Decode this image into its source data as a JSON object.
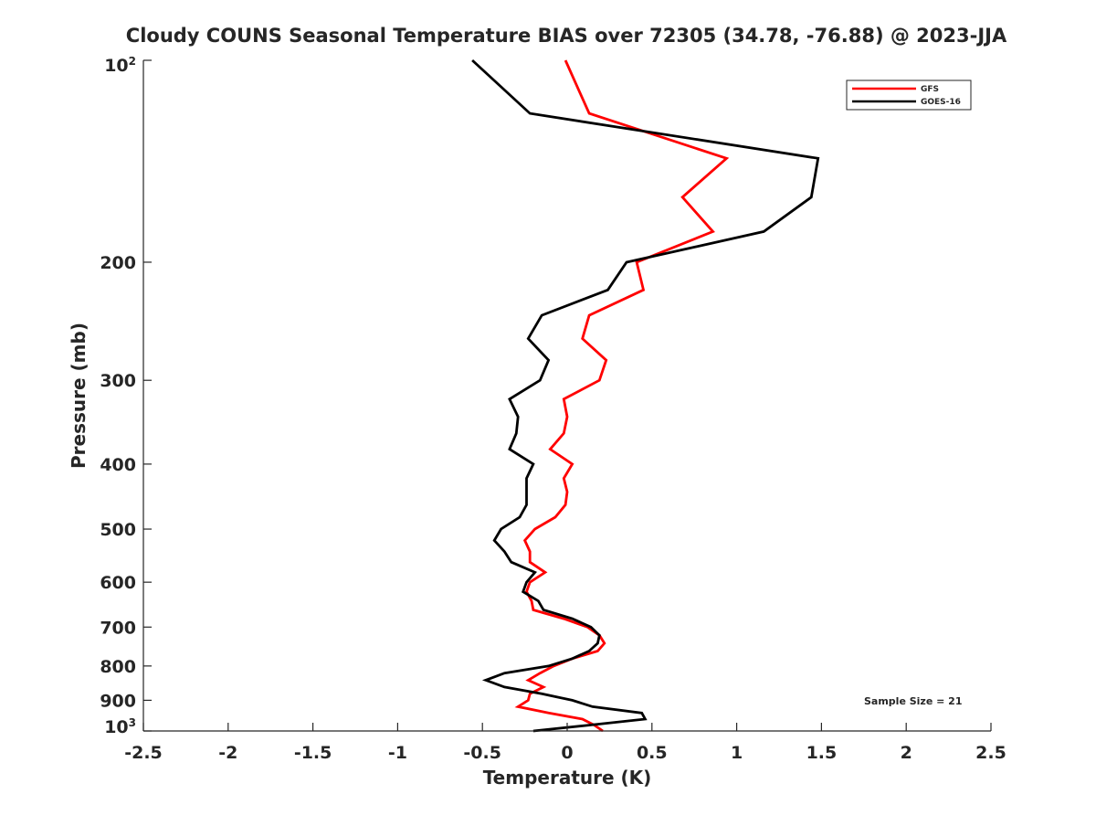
{
  "chart_data": {
    "type": "line",
    "title": "Cloudy COUNS Seasonal Temperature BIAS over 72305 (34.78, -76.88) @ 2023-JJA",
    "xlabel": "Temperature (K)",
    "ylabel": "Pressure (mb)",
    "xlim": [
      -2.5,
      2.5
    ],
    "ylim": [
      100,
      1000
    ],
    "yscale": "log",
    "yreversed": true,
    "grid": false,
    "legend_position": "top-right",
    "xticks": [
      "-2.5",
      "-2",
      "-1.5",
      "-1",
      "-0.5",
      "0",
      "0.5",
      "1",
      "1.5",
      "2",
      "2.5"
    ],
    "xtick_values": [
      -2.5,
      -2,
      -1.5,
      -1,
      -0.5,
      0,
      0.5,
      1,
      1.5,
      2,
      2.5
    ],
    "yticks": [
      {
        "value": 100,
        "base": "10",
        "exp": "2"
      },
      {
        "value": 200,
        "label": "200"
      },
      {
        "value": 300,
        "label": "300"
      },
      {
        "value": 400,
        "label": "400"
      },
      {
        "value": 500,
        "label": "500"
      },
      {
        "value": 600,
        "label": "600"
      },
      {
        "value": 700,
        "label": "700"
      },
      {
        "value": 800,
        "label": "800"
      },
      {
        "value": 900,
        "label": "900"
      },
      {
        "value": 1000,
        "base": "10",
        "exp": "3"
      }
    ],
    "pressure": [
      100,
      120,
      140,
      160,
      180,
      200,
      220,
      240,
      260,
      280,
      300,
      320,
      340,
      360,
      380,
      400,
      420,
      440,
      460,
      480,
      500,
      520,
      540,
      560,
      580,
      600,
      620,
      640,
      660,
      680,
      700,
      720,
      740,
      760,
      780,
      800,
      820,
      840,
      860,
      880,
      900,
      920,
      940,
      960,
      980,
      1000
    ],
    "series": [
      {
        "name": "GFS",
        "color": "#ff0000",
        "values": [
          -0.01,
          0.13,
          0.94,
          0.68,
          0.86,
          0.41,
          0.45,
          0.13,
          0.09,
          0.23,
          0.19,
          -0.02,
          0.0,
          -0.02,
          -0.1,
          0.03,
          -0.02,
          0.0,
          -0.01,
          -0.07,
          -0.19,
          -0.25,
          -0.22,
          -0.22,
          -0.13,
          -0.22,
          -0.24,
          -0.21,
          -0.2,
          -0.02,
          0.12,
          0.19,
          0.22,
          0.18,
          0.03,
          -0.08,
          -0.16,
          -0.23,
          -0.14,
          -0.22,
          -0.23,
          -0.29,
          -0.11,
          0.09,
          0.16,
          0.21
        ]
      },
      {
        "name": "GOES-16",
        "color": "#000000",
        "values": [
          -0.56,
          -0.22,
          1.48,
          1.44,
          1.16,
          0.35,
          0.24,
          -0.15,
          -0.23,
          -0.11,
          -0.16,
          -0.34,
          -0.29,
          -0.3,
          -0.34,
          -0.2,
          -0.24,
          -0.24,
          -0.24,
          -0.28,
          -0.39,
          -0.43,
          -0.37,
          -0.33,
          -0.19,
          -0.24,
          -0.26,
          -0.17,
          -0.14,
          0.03,
          0.14,
          0.19,
          0.18,
          0.13,
          0.03,
          -0.11,
          -0.37,
          -0.48,
          -0.37,
          -0.15,
          0.03,
          0.15,
          0.44,
          0.46,
          0.13,
          -0.2
        ]
      }
    ],
    "annotation": "Sample Size = 21"
  }
}
